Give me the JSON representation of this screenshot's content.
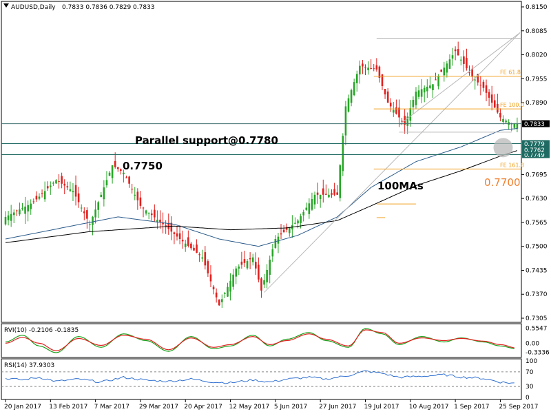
{
  "chart_data": [
    {
      "panel": "price",
      "type": "candlestick",
      "symbol_title": "AUDUSD,Daily",
      "ohlc_header": "0.7833 0.7836 0.7829 0.7833",
      "ylim": [
        0.7305,
        0.815
      ],
      "y_ticks": [
        "0.8150",
        "0.8085",
        "0.8020",
        "0.7955",
        "0.7890",
        "0.7695",
        "0.7630",
        "0.7565",
        "0.7500",
        "0.7435",
        "0.7370",
        "0.7305"
      ],
      "y_tick_values": [
        0.815,
        0.8085,
        0.802,
        0.7955,
        0.789,
        0.7695,
        0.763,
        0.7565,
        0.75,
        0.7435,
        0.737,
        0.7305
      ],
      "x_labels": [
        "20 Jan 2017",
        "13 Feb 2017",
        "7 Mar 2017",
        "29 Mar 2017",
        "20 Apr 2017",
        "12 May 2017",
        "5 Jun 2017",
        "27 Jun 2017",
        "19 Jul 2017",
        "10 Aug 2017",
        "1 Sep 2017",
        "25 Sep 2017"
      ],
      "x_label_positions": [
        0,
        16,
        32,
        48,
        64,
        80,
        96,
        112,
        128,
        144,
        160,
        176
      ],
      "bars_count": 183,
      "key_points": [
        {
          "bar": 0,
          "close": 0.758
        },
        {
          "bar": 10,
          "close": 0.762
        },
        {
          "bar": 18,
          "close": 0.768
        },
        {
          "bar": 24,
          "close": 0.765
        },
        {
          "bar": 30,
          "close": 0.756
        },
        {
          "bar": 38,
          "close": 0.772
        },
        {
          "bar": 42,
          "close": 0.77
        },
        {
          "bar": 48,
          "close": 0.761
        },
        {
          "bar": 56,
          "close": 0.756
        },
        {
          "bar": 62,
          "close": 0.752
        },
        {
          "bar": 70,
          "close": 0.747
        },
        {
          "bar": 76,
          "close": 0.734
        },
        {
          "bar": 82,
          "close": 0.744
        },
        {
          "bar": 88,
          "close": 0.747
        },
        {
          "bar": 91,
          "close": 0.738
        },
        {
          "bar": 96,
          "close": 0.752
        },
        {
          "bar": 104,
          "close": 0.757
        },
        {
          "bar": 110,
          "close": 0.764
        },
        {
          "bar": 118,
          "close": 0.764
        },
        {
          "bar": 121,
          "close": 0.788
        },
        {
          "bar": 126,
          "close": 0.799
        },
        {
          "bar": 132,
          "close": 0.798
        },
        {
          "bar": 136,
          "close": 0.789
        },
        {
          "bar": 142,
          "close": 0.783
        },
        {
          "bar": 146,
          "close": 0.792
        },
        {
          "bar": 152,
          "close": 0.794
        },
        {
          "bar": 160,
          "close": 0.803
        },
        {
          "bar": 166,
          "close": 0.796
        },
        {
          "bar": 170,
          "close": 0.793
        },
        {
          "bar": 176,
          "close": 0.785
        },
        {
          "bar": 180,
          "close": 0.7833
        },
        {
          "bar": 182,
          "close": 0.7833
        }
      ],
      "ma_fast_points": [
        {
          "bar": 0,
          "value": 0.752
        },
        {
          "bar": 20,
          "value": 0.755
        },
        {
          "bar": 40,
          "value": 0.758
        },
        {
          "bar": 60,
          "value": 0.756
        },
        {
          "bar": 76,
          "value": 0.752
        },
        {
          "bar": 90,
          "value": 0.75
        },
        {
          "bar": 104,
          "value": 0.753
        },
        {
          "bar": 118,
          "value": 0.758
        },
        {
          "bar": 130,
          "value": 0.766
        },
        {
          "bar": 146,
          "value": 0.773
        },
        {
          "bar": 162,
          "value": 0.777
        },
        {
          "bar": 176,
          "value": 0.7815
        },
        {
          "bar": 182,
          "value": 0.782
        }
      ],
      "ma_slow_points": [
        {
          "bar": 0,
          "value": 0.751
        },
        {
          "bar": 30,
          "value": 0.754
        },
        {
          "bar": 60,
          "value": 0.7555
        },
        {
          "bar": 80,
          "value": 0.7545
        },
        {
          "bar": 100,
          "value": 0.755
        },
        {
          "bar": 118,
          "value": 0.757
        },
        {
          "bar": 130,
          "value": 0.761
        },
        {
          "bar": 146,
          "value": 0.7665
        },
        {
          "bar": 162,
          "value": 0.7705
        },
        {
          "bar": 176,
          "value": 0.7745
        },
        {
          "bar": 182,
          "value": 0.776
        }
      ],
      "hlines": [
        {
          "label": "0.7833",
          "value": 0.7833,
          "color": "#3d6e6e",
          "box_bg": "#000000",
          "box_fg": "#ffffff"
        },
        {
          "label": "0.7779",
          "value": 0.7779,
          "color": "#1f6b63",
          "box_bg": "#1f6b63",
          "box_fg": "#ffffff"
        },
        {
          "label": "0.7749",
          "value": 0.7749,
          "color": "#1f6b63",
          "box_bg": "#1f6b63",
          "box_fg": "#ffffff"
        },
        {
          "label": "0.7762",
          "value": 0.7762,
          "color": "#1f6b63",
          "box_bg": "#1f6b63",
          "box_fg": "#ffffff"
        }
      ],
      "fib_levels": [
        {
          "label": "FE 61.8",
          "value": 0.7962,
          "x_start_bar": 131
        },
        {
          "label": "FE 100.0",
          "value": 0.7873,
          "x_start_bar": 131
        },
        {
          "label": "FE 161.8",
          "value": 0.771,
          "x_start_bar": 131
        }
      ],
      "annotations": {
        "support_text": "Parallel support@0.7780",
        "level_text": "0.7750",
        "ma_text": "100MAs",
        "target_text": "0.7700"
      },
      "colors": {
        "up": "#26a626",
        "down": "#e0201e",
        "ma_fast": "#2a5a8a",
        "ma_slow": "#000000",
        "fib": "#f0a020",
        "target": "#f08030"
      }
    },
    {
      "panel": "RVI",
      "type": "line",
      "header": "RVI(10) -0.2106 -0.1835",
      "y_ticks": [
        "0.5547",
        "0.00",
        "-0.3336"
      ],
      "ylim": [
        -0.45,
        0.65
      ],
      "series": [
        {
          "color": "#1aa01a",
          "points": [
            [
              0,
              0.05
            ],
            [
              6,
              0.3
            ],
            [
              12,
              -0.1
            ],
            [
              18,
              -0.35
            ],
            [
              26,
              0.25
            ],
            [
              34,
              -0.15
            ],
            [
              42,
              0.35
            ],
            [
              50,
              0.1
            ],
            [
              58,
              -0.3
            ],
            [
              66,
              0.25
            ],
            [
              74,
              -0.2
            ],
            [
              80,
              -0.1
            ],
            [
              88,
              0.3
            ],
            [
              94,
              -0.1
            ],
            [
              100,
              0.15
            ],
            [
              108,
              0.4
            ],
            [
              114,
              0.1
            ],
            [
              122,
              -0.15
            ],
            [
              128,
              0.55
            ],
            [
              134,
              0.35
            ],
            [
              140,
              -0.05
            ],
            [
              148,
              0.25
            ],
            [
              156,
              0.05
            ],
            [
              162,
              0.2
            ],
            [
              170,
              0.05
            ],
            [
              176,
              -0.1
            ],
            [
              182,
              -0.21
            ]
          ]
        },
        {
          "color": "#e0201e",
          "points": [
            [
              0,
              0.0
            ],
            [
              6,
              0.22
            ],
            [
              12,
              0.0
            ],
            [
              18,
              -0.28
            ],
            [
              26,
              0.18
            ],
            [
              34,
              -0.08
            ],
            [
              42,
              0.3
            ],
            [
              50,
              0.15
            ],
            [
              58,
              -0.24
            ],
            [
              66,
              0.2
            ],
            [
              74,
              -0.15
            ],
            [
              80,
              -0.05
            ],
            [
              88,
              0.25
            ],
            [
              94,
              -0.05
            ],
            [
              100,
              0.1
            ],
            [
              108,
              0.35
            ],
            [
              114,
              0.15
            ],
            [
              122,
              -0.1
            ],
            [
              128,
              0.5
            ],
            [
              134,
              0.4
            ],
            [
              140,
              0.0
            ],
            [
              148,
              0.2
            ],
            [
              156,
              0.1
            ],
            [
              162,
              0.18
            ],
            [
              170,
              0.08
            ],
            [
              176,
              -0.05
            ],
            [
              182,
              -0.18
            ]
          ]
        }
      ]
    },
    {
      "panel": "RSI",
      "type": "line",
      "header": "RSI(14) 37.9303",
      "y_ticks": [
        "100",
        "70",
        "30",
        "0"
      ],
      "ylim": [
        0,
        100
      ],
      "levels": [
        70,
        30
      ],
      "series": [
        {
          "color": "#2f6fd0",
          "points": [
            [
              0,
              52
            ],
            [
              6,
              48
            ],
            [
              12,
              55
            ],
            [
              18,
              44
            ],
            [
              26,
              50
            ],
            [
              34,
              42
            ],
            [
              42,
              55
            ],
            [
              50,
              47
            ],
            [
              58,
              44
            ],
            [
              66,
              50
            ],
            [
              74,
              42
            ],
            [
              80,
              40
            ],
            [
              88,
              48
            ],
            [
              94,
              42
            ],
            [
              100,
              50
            ],
            [
              108,
              55
            ],
            [
              114,
              50
            ],
            [
              122,
              60
            ],
            [
              128,
              72
            ],
            [
              134,
              66
            ],
            [
              140,
              55
            ],
            [
              148,
              58
            ],
            [
              156,
              62
            ],
            [
              162,
              56
            ],
            [
              170,
              52
            ],
            [
              176,
              42
            ],
            [
              182,
              38
            ]
          ]
        }
      ]
    }
  ]
}
